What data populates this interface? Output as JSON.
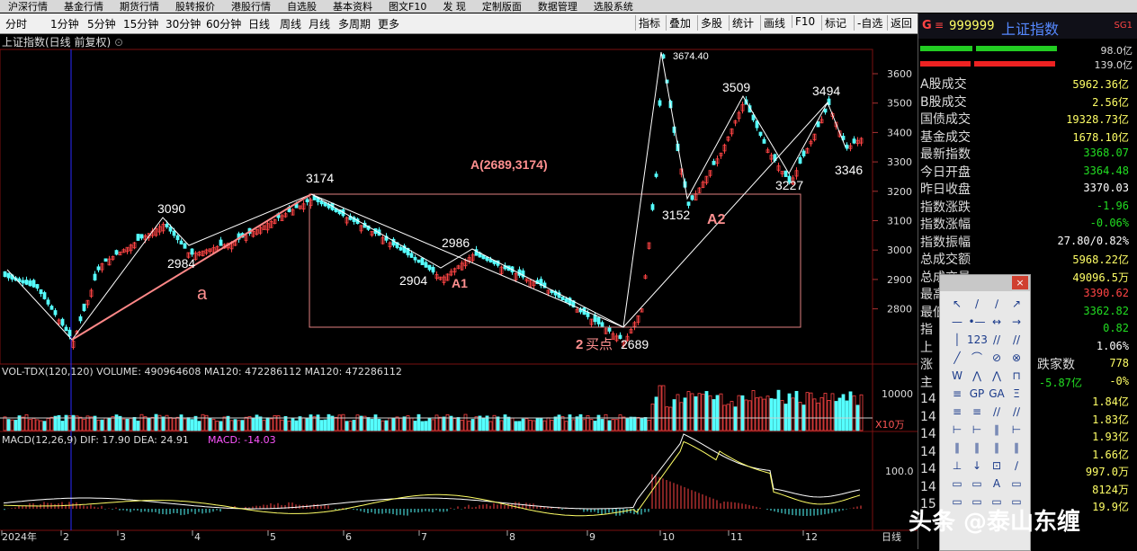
{
  "top_menu": [
    "沪深行情",
    "基金行情",
    "期货行情",
    "股转报价",
    "港股行情",
    "自选股",
    "基本资料",
    "图文F10",
    "发 现",
    "定制版面",
    "数据管理",
    "选股系统"
  ],
  "periods": [
    "分时",
    "1分钟",
    "5分钟",
    "15分钟",
    "30分钟",
    "60分钟",
    "日线",
    "周线",
    "月线",
    "多周期",
    "更多"
  ],
  "right_buttons": [
    "指标",
    "叠加",
    "多股",
    "统计",
    "画线",
    "F10",
    "标记",
    "-自选",
    "返回"
  ],
  "chart_title": "上证指数(日线 前复权)",
  "price_axis": [
    "3600",
    "3500",
    "3400",
    "3300",
    "3200",
    "3100",
    "3000",
    "2900",
    "2800"
  ],
  "annotations": {
    "peak_3674": "3674.40",
    "p3509": "3509",
    "p3494": "3494",
    "p3346": "3346",
    "p3227": "3227",
    "p3152": "3152",
    "label_A2": "A2",
    "box_label": "A(2689,3174)",
    "p3174": "3174",
    "p3090": "3090",
    "p2984": "2984",
    "p2986": "2986",
    "p2904": "2904",
    "label_A1": "A1",
    "label_a": "a",
    "buy_num": "2",
    "buy_text": "买点",
    "p2689": "2689"
  },
  "volume": {
    "label": "VOL-TDX(120,120) VOLUME: 490964608 MA120: 472286112 MA120: 472286112",
    "axis_10000": "10000",
    "axis_unit": "X10万"
  },
  "macd": {
    "label_main": "MACD(12,26,9) DIF: 17.90 DEA: 24.91",
    "label_macd": "MACD: -14.03",
    "axis_100": "100.0"
  },
  "date_axis": [
    "2024年",
    "2",
    "3",
    "4",
    "5",
    "6",
    "7",
    "8",
    "9",
    "10",
    "11",
    "12"
  ],
  "period_tag": "日线",
  "quote": {
    "code": "999999",
    "name": "上证指数",
    "tag": "SG1",
    "bar_pct1": "98.0亿",
    "bar_pct2": "139.0亿",
    "rows": [
      {
        "k": "A股成交",
        "v": "5962.36亿",
        "c": "#ffff66"
      },
      {
        "k": "B股成交",
        "v": "2.56亿",
        "c": "#ffff66"
      },
      {
        "k": "国债成交",
        "v": "19328.73亿",
        "c": "#ffff66"
      },
      {
        "k": "基金成交",
        "v": "1678.10亿",
        "c": "#ffff66"
      },
      {
        "k": "最新指数",
        "v": "3368.07",
        "c": "#22dd22"
      },
      {
        "k": "今日开盘",
        "v": "3364.48",
        "c": "#22dd22"
      },
      {
        "k": "昨日收盘",
        "v": "3370.03",
        "c": "#ffffff"
      },
      {
        "k": "指数涨跌",
        "v": "-1.96",
        "c": "#22dd22"
      },
      {
        "k": "指数涨幅",
        "v": "-0.06%",
        "c": "#22dd22"
      },
      {
        "k": "指数振幅",
        "v": "27.80/0.82%",
        "c": "#ffffff"
      },
      {
        "k": "总成交额",
        "v": "5968.22亿",
        "c": "#ffff66"
      },
      {
        "k": "总成交量",
        "v": "49096.5万",
        "c": "#ffff66"
      },
      {
        "k": "最高指数",
        "v": "3390.62",
        "c": "#ff4444"
      },
      {
        "k": "最低指数",
        "v": "3362.82",
        "c": "#22dd22"
      },
      {
        "k": "指",
        "v": "0.82",
        "c": "#22dd22"
      },
      {
        "k": "上",
        "v": "1.06%",
        "c": "#ffffff"
      }
    ],
    "row_zhang": "涨",
    "row_zhang_right": "跌家数",
    "row_zhang_val": "778",
    "row_zhu": "主",
    "row_zhu_val": "-5.87亿",
    "row_zhu_pct": "-0%",
    "ticks": [
      {
        "t": "14",
        "v": "1.84亿"
      },
      {
        "t": "14",
        "v": "1.83亿"
      },
      {
        "t": "14",
        "v": "1.93亿"
      },
      {
        "t": "14",
        "v": "1.66亿"
      },
      {
        "t": "14",
        "v": "997.0万"
      },
      {
        "t": "14",
        "v": "8124万"
      },
      {
        "t": "15",
        "v": "19.9亿"
      }
    ]
  },
  "drawtools": {
    "close": "×",
    "icons": [
      "↖",
      "/",
      "∕",
      "↗",
      "—",
      "•—",
      "↔",
      "→",
      "│",
      "123",
      "//",
      "//",
      "╱",
      "⌒",
      "⊘",
      "⊗",
      "W",
      "⋀",
      "⋀",
      "⊓",
      "≡",
      "GP",
      "GA",
      "Ξ",
      "≡",
      "≡",
      "∕∕",
      "∕∕",
      "⊢",
      "⊢",
      "∥",
      "⊢",
      "∥",
      "∥",
      "∥",
      "∥",
      "⊥",
      "↓",
      "⊡",
      "∕",
      "▭",
      "▭",
      "A",
      "▭",
      "▭",
      "▭",
      "▭",
      "▭"
    ]
  },
  "watermark": "头条 @泰山东缠"
}
